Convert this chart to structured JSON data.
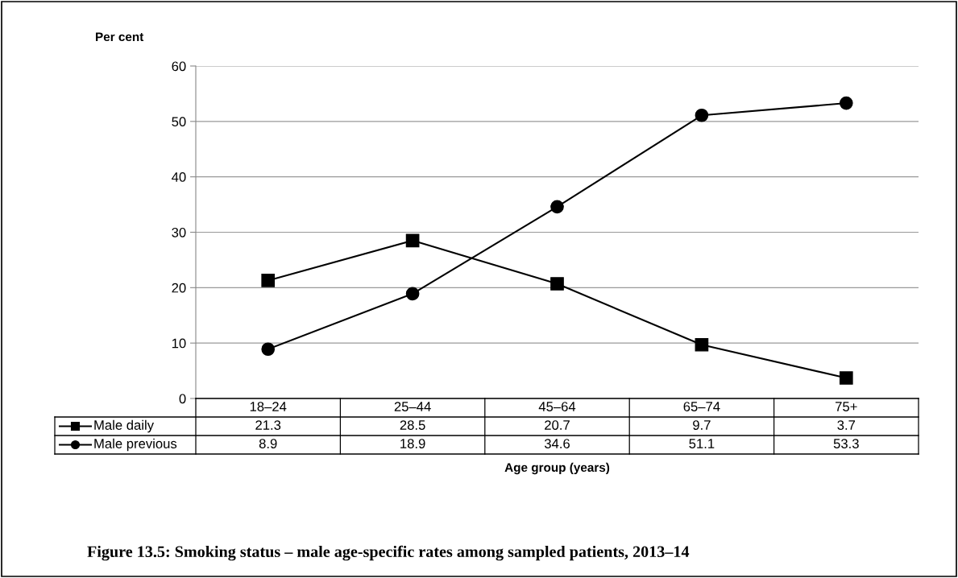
{
  "chart_data": {
    "type": "line",
    "title": "Figure 13.5: Smoking status – male age-specific rates among sampled patients, 2013–14",
    "xlabel": "Age group (years)",
    "ylabel": "Per cent",
    "categories": [
      "18–24",
      "25–44",
      "45–64",
      "65–74",
      "75+"
    ],
    "series": [
      {
        "name": "Male daily",
        "color": "#000000",
        "marker": "square",
        "values": [
          21.3,
          28.5,
          20.7,
          9.7,
          3.7
        ]
      },
      {
        "name": "Male previous",
        "color": "#000000",
        "marker": "circle",
        "values": [
          8.9,
          18.9,
          34.6,
          51.1,
          53.3
        ]
      }
    ],
    "ylim": [
      0,
      60
    ],
    "yticks": [
      0,
      10,
      20,
      30,
      40,
      50,
      60
    ],
    "grid": "y",
    "data_labels": true,
    "line_style": "solid",
    "legend": "bottom left"
  }
}
